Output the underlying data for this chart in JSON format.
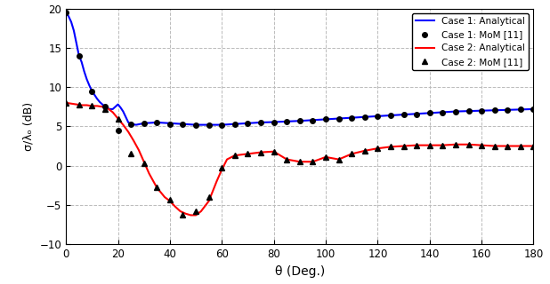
{
  "title": "",
  "xlabel": "θ (Deg.)",
  "ylabel": "σ/λₒ (dB)",
  "xlim": [
    0,
    180
  ],
  "ylim": [
    -10,
    20
  ],
  "yticks": [
    -10,
    -5,
    0,
    5,
    10,
    15,
    20
  ],
  "xticks": [
    0,
    20,
    40,
    60,
    80,
    100,
    120,
    140,
    160,
    180
  ],
  "background_color": "#ffffff",
  "grid_color": "#bbbbbb",
  "legend": {
    "case1_analytical": "Case 1: Analytical",
    "case1_mom": "Case 1: MoM [11]",
    "case2_analytical": "Case 2: Analytical",
    "case2_mom": "Case 2: MoM [11]"
  },
  "case1_analytical_color": "#0000ff",
  "case2_analytical_color": "#ff0000",
  "mom_marker_color": "#000000",
  "case1_analytical_x": [
    0,
    1,
    2,
    3,
    4,
    5,
    6,
    7,
    8,
    9,
    10,
    11,
    12,
    13,
    14,
    15,
    16,
    17,
    18,
    19,
    20,
    21,
    22,
    23,
    24,
    25,
    27,
    30,
    35,
    40,
    45,
    50,
    55,
    60,
    65,
    70,
    75,
    80,
    90,
    100,
    110,
    120,
    130,
    140,
    150,
    160,
    170,
    180
  ],
  "case1_analytical_y": [
    19.5,
    19.0,
    18.3,
    17.2,
    15.6,
    14.0,
    13.2,
    12.0,
    11.0,
    10.2,
    9.5,
    9.0,
    8.5,
    8.1,
    7.8,
    7.5,
    7.3,
    7.2,
    7.2,
    7.5,
    7.8,
    7.4,
    6.9,
    6.2,
    5.5,
    5.3,
    5.2,
    5.4,
    5.5,
    5.4,
    5.3,
    5.2,
    5.2,
    5.2,
    5.3,
    5.4,
    5.5,
    5.55,
    5.7,
    5.9,
    6.1,
    6.3,
    6.5,
    6.7,
    6.9,
    7.0,
    7.1,
    7.2
  ],
  "case1_mom_x": [
    0,
    5,
    10,
    15,
    20,
    25,
    30,
    35,
    40,
    45,
    50,
    55,
    60,
    65,
    70,
    75,
    80,
    85,
    90,
    95,
    100,
    105,
    110,
    115,
    120,
    125,
    130,
    135,
    140,
    145,
    150,
    155,
    160,
    165,
    170,
    175,
    180
  ],
  "case1_mom_y": [
    19.5,
    14.0,
    9.5,
    7.5,
    4.5,
    5.3,
    5.4,
    5.5,
    5.3,
    5.3,
    5.2,
    5.2,
    5.2,
    5.3,
    5.4,
    5.5,
    5.55,
    5.6,
    5.7,
    5.75,
    5.9,
    5.95,
    6.1,
    6.15,
    6.3,
    6.35,
    6.5,
    6.55,
    6.7,
    6.75,
    6.9,
    6.95,
    7.0,
    7.05,
    7.1,
    7.15,
    7.2
  ],
  "case2_analytical_x": [
    0,
    2,
    4,
    6,
    8,
    10,
    12,
    14,
    16,
    18,
    20,
    22,
    24,
    26,
    28,
    30,
    32,
    35,
    38,
    40,
    42,
    44,
    46,
    48,
    50,
    52,
    55,
    58,
    60,
    62,
    65,
    70,
    75,
    80,
    85,
    90,
    95,
    100,
    105,
    110,
    115,
    120,
    125,
    130,
    135,
    140,
    145,
    150,
    155,
    160,
    165,
    170,
    175,
    180
  ],
  "case2_analytical_y": [
    8.0,
    7.9,
    7.8,
    7.7,
    7.7,
    7.6,
    7.6,
    7.5,
    7.3,
    6.8,
    6.0,
    5.2,
    4.3,
    3.2,
    2.0,
    0.5,
    -1.0,
    -2.8,
    -4.0,
    -4.5,
    -5.2,
    -5.8,
    -6.1,
    -6.3,
    -6.3,
    -5.8,
    -4.5,
    -2.0,
    -0.5,
    0.8,
    1.3,
    1.5,
    1.7,
    1.8,
    0.8,
    0.5,
    0.5,
    1.1,
    0.8,
    1.5,
    1.9,
    2.2,
    2.4,
    2.5,
    2.6,
    2.6,
    2.6,
    2.7,
    2.7,
    2.6,
    2.5,
    2.5,
    2.5,
    2.5
  ],
  "case2_mom_x": [
    0,
    5,
    10,
    15,
    20,
    25,
    30,
    35,
    40,
    45,
    50,
    55,
    60,
    65,
    70,
    75,
    80,
    85,
    90,
    95,
    100,
    105,
    110,
    115,
    120,
    125,
    130,
    135,
    140,
    145,
    150,
    155,
    160,
    165,
    170,
    175,
    180
  ],
  "case2_mom_y": [
    8.0,
    7.7,
    7.6,
    7.2,
    6.0,
    1.5,
    0.3,
    -2.8,
    -4.3,
    -6.3,
    -5.8,
    -4.0,
    -0.3,
    1.3,
    1.5,
    1.7,
    1.8,
    0.8,
    0.5,
    0.5,
    1.1,
    0.8,
    1.5,
    1.9,
    2.2,
    2.4,
    2.5,
    2.6,
    2.6,
    2.6,
    2.7,
    2.7,
    2.6,
    2.5,
    2.5,
    2.5,
    2.5
  ],
  "fig_width": 6.18,
  "fig_height": 3.2,
  "dpi": 100
}
